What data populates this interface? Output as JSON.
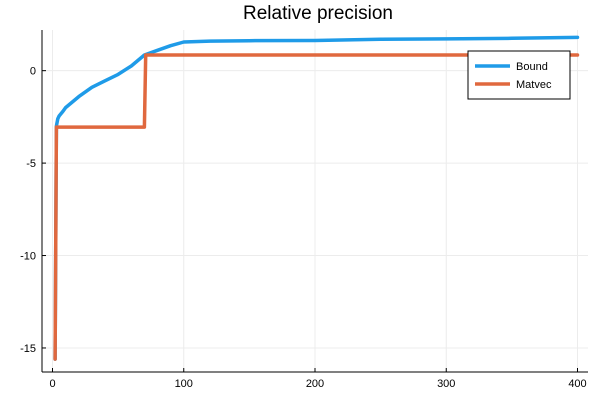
{
  "chart_data": {
    "type": "line",
    "title": "Relative precision",
    "xlabel": "",
    "ylabel": "",
    "xlim": [
      -8,
      408
    ],
    "ylim": [
      -16.3,
      2.2
    ],
    "xticks": [
      0,
      100,
      200,
      300,
      400
    ],
    "yticks": [
      0,
      -5,
      -10,
      -15
    ],
    "grid": true,
    "legend_position": "top-right",
    "series": [
      {
        "name": "Bound",
        "color": "#1f9be8",
        "points": [
          [
            2,
            -15.6
          ],
          [
            3,
            -3.0
          ],
          [
            4,
            -2.6
          ],
          [
            5,
            -2.45
          ],
          [
            8,
            -2.2
          ],
          [
            10,
            -2.0
          ],
          [
            15,
            -1.7
          ],
          [
            20,
            -1.4
          ],
          [
            30,
            -0.9
          ],
          [
            40,
            -0.55
          ],
          [
            50,
            -0.2
          ],
          [
            60,
            0.25
          ],
          [
            70,
            0.85
          ],
          [
            80,
            1.1
          ],
          [
            90,
            1.35
          ],
          [
            100,
            1.55
          ],
          [
            120,
            1.6
          ],
          [
            150,
            1.62
          ],
          [
            200,
            1.63
          ],
          [
            250,
            1.7
          ],
          [
            300,
            1.72
          ],
          [
            350,
            1.75
          ],
          [
            400,
            1.8
          ]
        ]
      },
      {
        "name": "Matvec",
        "color": "#e0683e",
        "points": [
          [
            2,
            -15.6
          ],
          [
            3,
            -3.05
          ],
          [
            70,
            -3.05
          ],
          [
            71,
            0.85
          ],
          [
            400,
            0.85
          ]
        ]
      }
    ]
  }
}
